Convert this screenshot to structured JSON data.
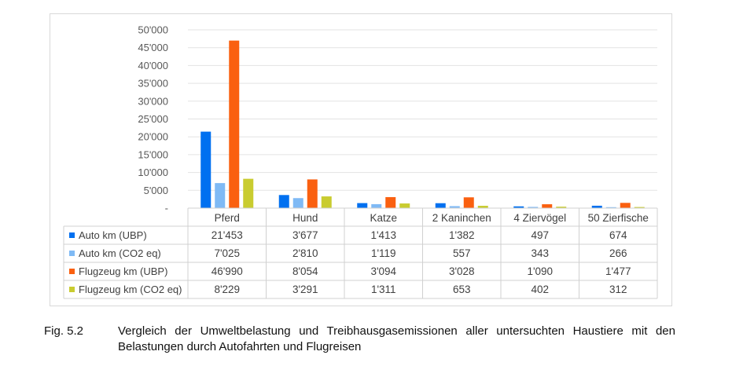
{
  "chart_data": {
    "type": "bar",
    "title": "",
    "xlabel": "",
    "ylabel": "",
    "ylim": [
      0,
      50000
    ],
    "yticks": [
      "-",
      "5'000",
      "10'000",
      "15'000",
      "20'000",
      "25'000",
      "30'000",
      "35'000",
      "40'000",
      "45'000",
      "50'000"
    ],
    "yticks_values": [
      0,
      5000,
      10000,
      15000,
      20000,
      25000,
      30000,
      35000,
      40000,
      45000,
      50000
    ],
    "categories": [
      "Pferd",
      "Hund",
      "Katze",
      "2 Kaninchen",
      "4 Ziervögel",
      "50 Zierfische"
    ],
    "series": [
      {
        "name": "Auto km (UBP)",
        "color": "#0070f0",
        "values": [
          21453,
          3677,
          1413,
          1382,
          497,
          674
        ],
        "labels": [
          "21'453",
          "3'677",
          "1'413",
          "1'382",
          "497",
          "674"
        ]
      },
      {
        "name": "Auto km (CO2 eq)",
        "color": "#7fbaf5",
        "values": [
          7025,
          2810,
          1119,
          557,
          343,
          266
        ],
        "labels": [
          "7'025",
          "2'810",
          "1'119",
          "557",
          "343",
          "266"
        ]
      },
      {
        "name": "Flugzeug km (UBP)",
        "color": "#fa6010",
        "values": [
          46990,
          8054,
          3094,
          3028,
          1090,
          1477
        ],
        "labels": [
          "46'990",
          "8'054",
          "3'094",
          "3'028",
          "1'090",
          "1'477"
        ]
      },
      {
        "name": "Flugzeug km (CO2 eq)",
        "color": "#c9cc30",
        "values": [
          8229,
          3291,
          1311,
          653,
          402,
          312
        ],
        "labels": [
          "8'229",
          "3'291",
          "1'311",
          "653",
          "402",
          "312"
        ]
      }
    ],
    "grid": true,
    "legend": "data-table"
  },
  "caption": {
    "figure_label": "Fig. 5.2",
    "text": "Vergleich der Umweltbelastung und Treibhausgasemissionen aller untersuchten Haustiere mit den Belastungen durch Autofahrten und Flugreisen"
  }
}
